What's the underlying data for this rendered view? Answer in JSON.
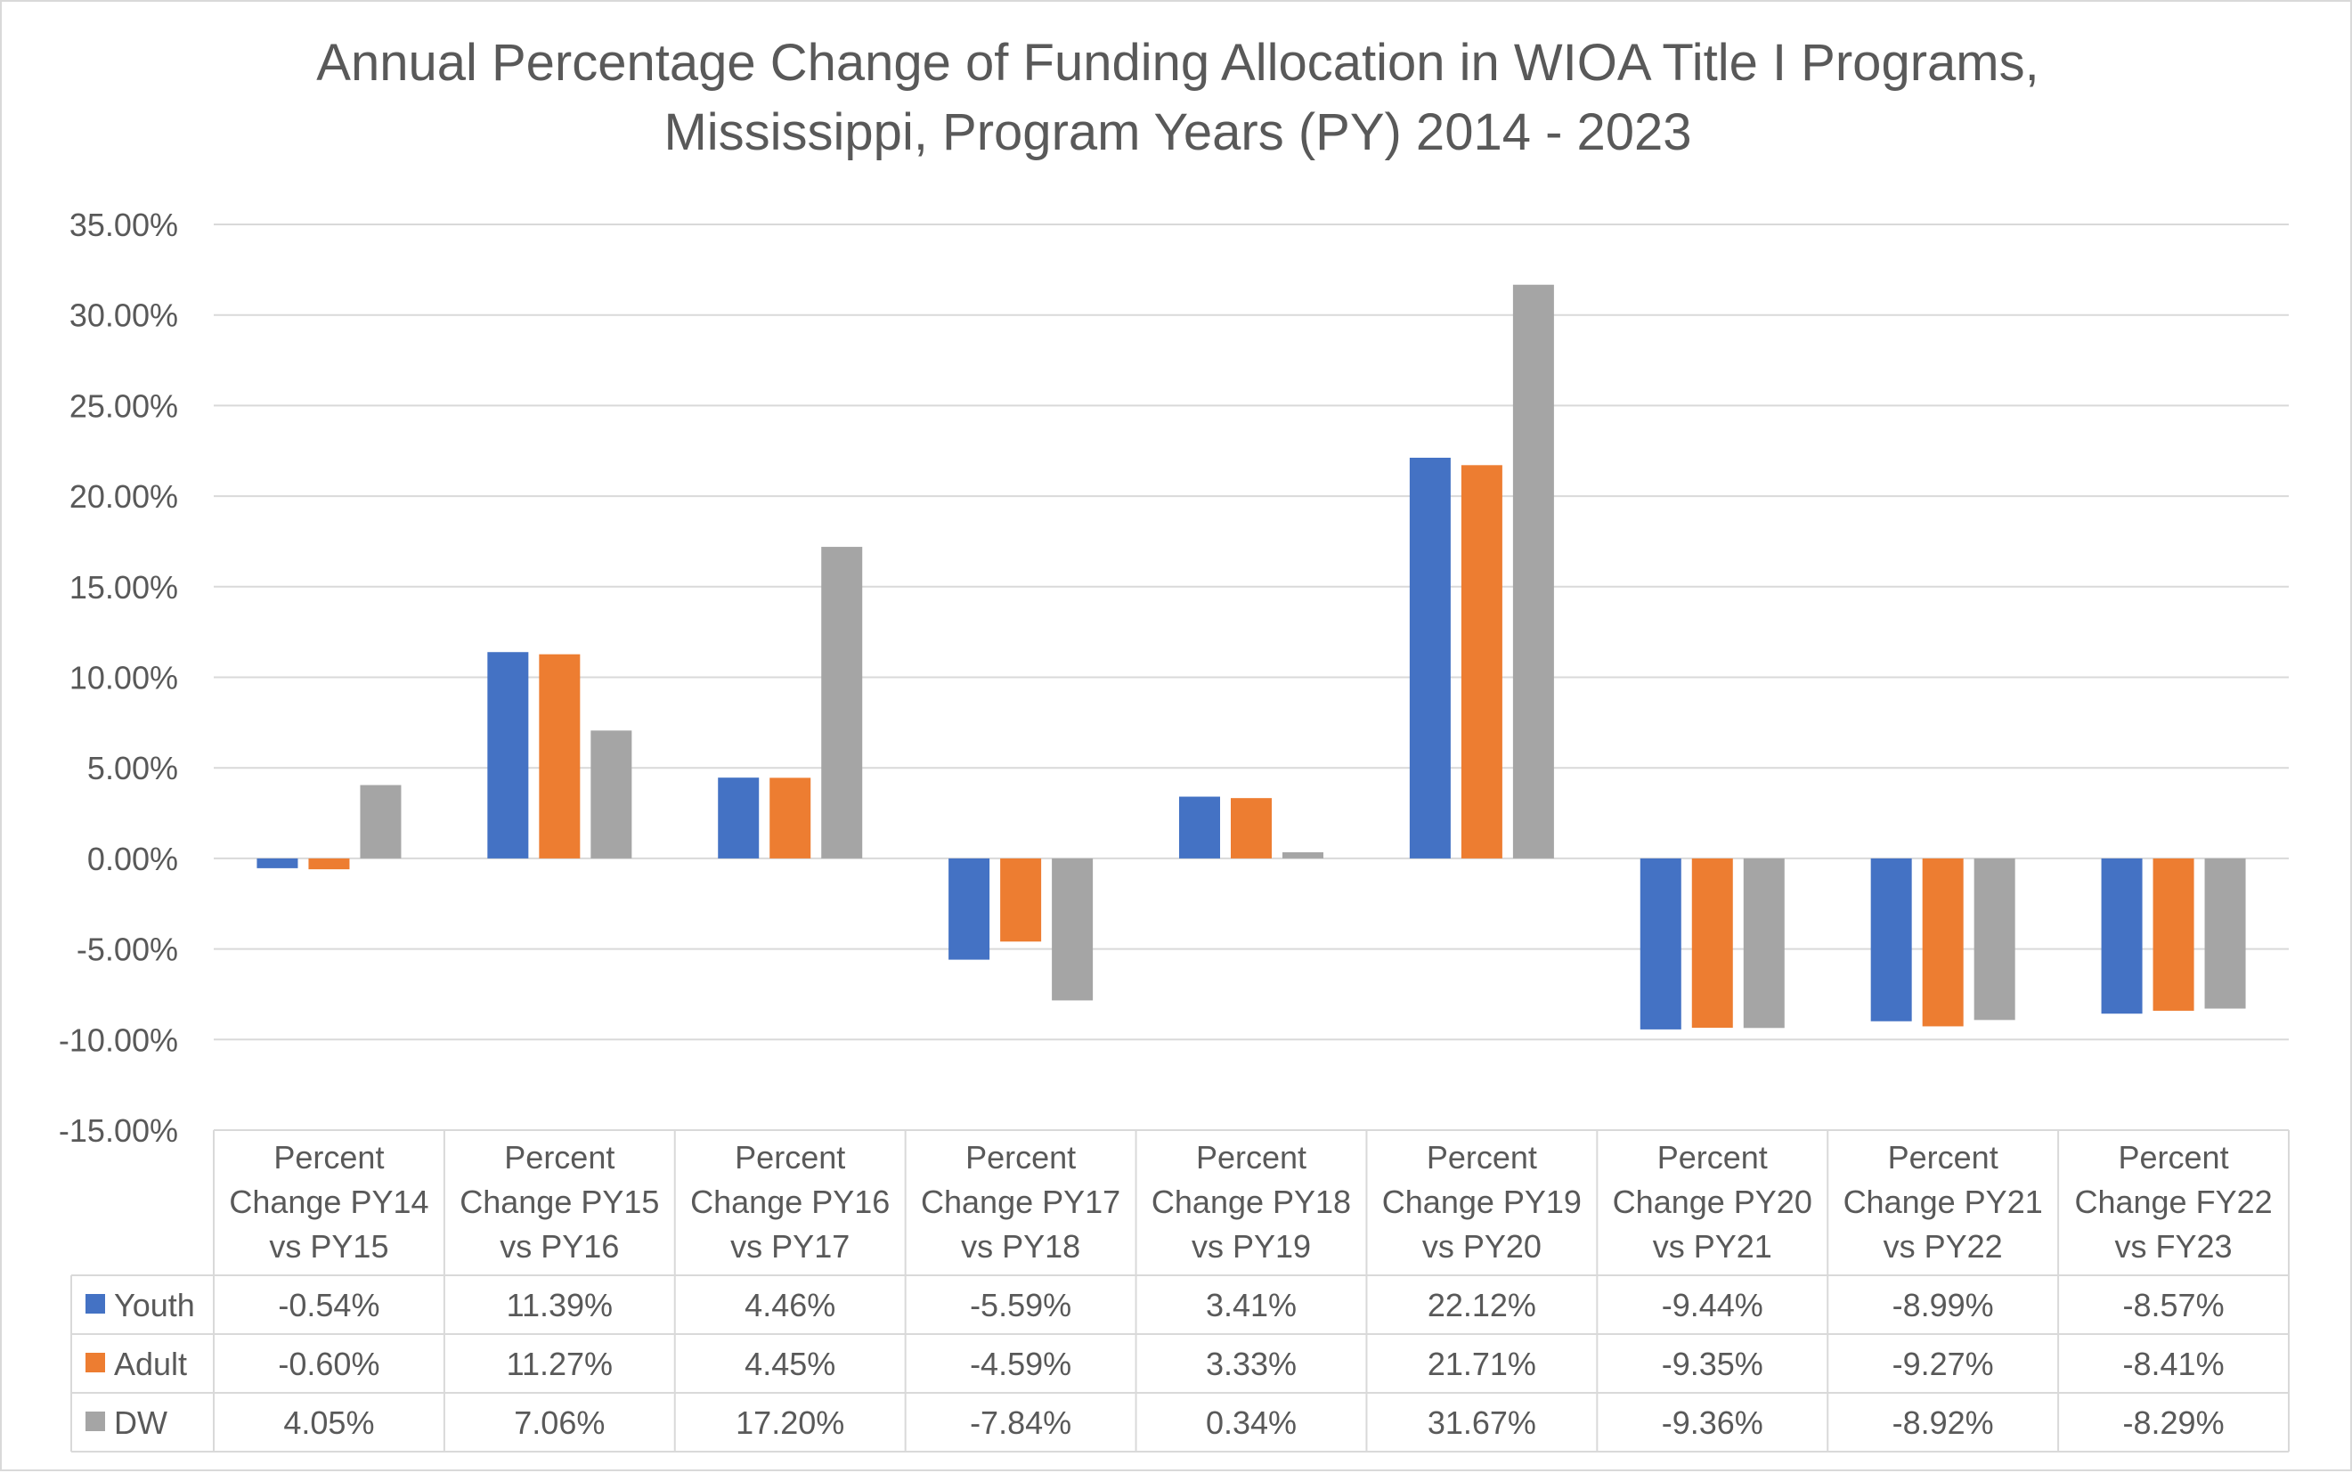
{
  "chart_data": {
    "type": "bar",
    "title": [
      "Annual Percentage Change of Funding Allocation in WIOA Title I Programs,",
      "Mississippi, Program Years (PY) 2014 - 2023"
    ],
    "categories": [
      [
        "Percent",
        "Change PY14",
        "vs PY15"
      ],
      [
        "Percent",
        "Change PY15",
        "vs PY16"
      ],
      [
        "Percent",
        "Change PY16",
        "vs PY17"
      ],
      [
        "Percent",
        "Change PY17",
        "vs PY18"
      ],
      [
        "Percent",
        "Change PY18",
        "vs PY19"
      ],
      [
        "Percent",
        "Change PY19",
        "vs PY20"
      ],
      [
        "Percent",
        "Change PY20",
        "vs PY21"
      ],
      [
        "Percent",
        "Change PY21",
        "vs PY22"
      ],
      [
        "Percent",
        "Change FY22",
        "vs FY23"
      ]
    ],
    "series": [
      {
        "name": "Youth",
        "color": "#4472C4",
        "values": [
          -0.54,
          11.39,
          4.46,
          -5.59,
          3.41,
          22.12,
          -9.44,
          -8.99,
          -8.57
        ],
        "labels": [
          "-0.54%",
          "11.39%",
          "4.46%",
          "-5.59%",
          "3.41%",
          "22.12%",
          "-9.44%",
          "-8.99%",
          "-8.57%"
        ]
      },
      {
        "name": "Adult",
        "color": "#ED7D31",
        "values": [
          -0.6,
          11.27,
          4.45,
          -4.59,
          3.33,
          21.71,
          -9.35,
          -9.27,
          -8.41
        ],
        "labels": [
          "-0.60%",
          "11.27%",
          "4.45%",
          "-4.59%",
          "3.33%",
          "21.71%",
          "-9.35%",
          "-9.27%",
          "-8.41%"
        ]
      },
      {
        "name": "DW",
        "color": "#A5A5A5",
        "values": [
          4.05,
          7.06,
          17.2,
          -7.84,
          0.34,
          31.67,
          -9.36,
          -8.92,
          -8.29
        ],
        "labels": [
          "4.05%",
          "7.06%",
          "17.20%",
          "-7.84%",
          "0.34%",
          "31.67%",
          "-9.36%",
          "-8.92%",
          "-8.29%"
        ]
      }
    ],
    "yticks": [
      35,
      30,
      25,
      20,
      15,
      10,
      5,
      0,
      -5,
      -10,
      -15
    ],
    "ytick_labels": [
      "35.00%",
      "30.00%",
      "25.00%",
      "20.00%",
      "15.00%",
      "10.00%",
      "5.00%",
      "0.00%",
      "-5.00%",
      "-10.00%",
      "-15.00%"
    ],
    "ylim": [
      -15,
      35
    ],
    "grid": true,
    "legend": "data-table",
    "axis_color": "#d9d9d9",
    "text_color": "#595959"
  }
}
